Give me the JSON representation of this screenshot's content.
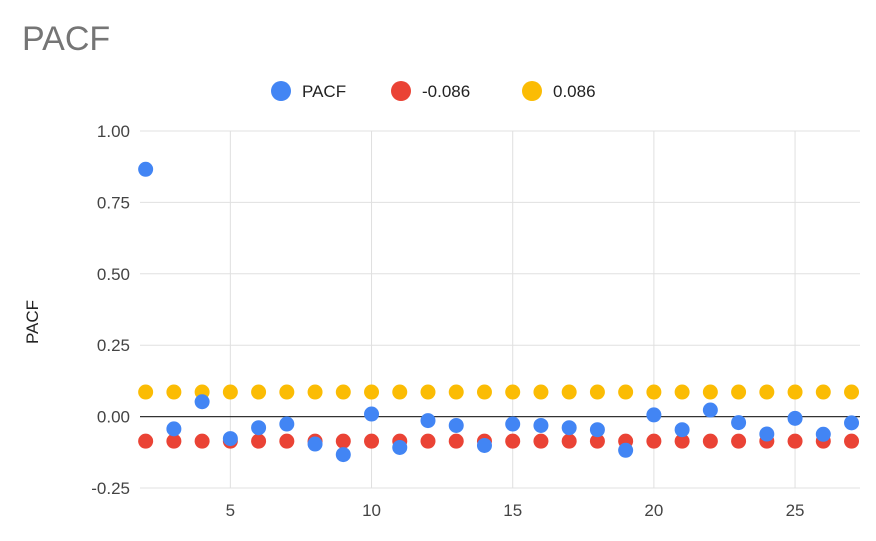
{
  "chart_data": {
    "type": "scatter",
    "title": "PACF",
    "xlabel": "",
    "ylabel": "PACF",
    "xlim": [
      1.8,
      27.3
    ],
    "ylim": [
      -0.25,
      1.0
    ],
    "xticks": [
      5,
      10,
      15,
      20,
      25
    ],
    "yticks": [
      -0.25,
      0.0,
      0.25,
      0.5,
      0.75,
      1.0
    ],
    "ytick_labels": [
      "-0.25",
      "0.00",
      "0.25",
      "0.50",
      "0.75",
      "1.00"
    ],
    "grid": true,
    "legend_position": "top",
    "x": [
      2,
      3,
      4,
      5,
      6,
      7,
      8,
      9,
      10,
      11,
      12,
      13,
      14,
      15,
      16,
      17,
      18,
      19,
      20,
      21,
      22,
      23,
      24,
      25,
      26,
      27
    ],
    "series": [
      {
        "name": "PACF",
        "color": "#4285f4",
        "values": [
          0.866,
          -0.043,
          0.052,
          -0.077,
          -0.039,
          -0.026,
          -0.096,
          -0.133,
          0.009,
          -0.108,
          -0.014,
          -0.031,
          -0.101,
          -0.026,
          -0.031,
          -0.039,
          -0.046,
          -0.118,
          0.006,
          -0.046,
          0.023,
          -0.021,
          -0.061,
          -0.006,
          -0.062,
          -0.022
        ]
      },
      {
        "name": "-0.086",
        "color": "#ea4335",
        "values": [
          -0.086,
          -0.086,
          -0.086,
          -0.086,
          -0.086,
          -0.086,
          -0.086,
          -0.086,
          -0.086,
          -0.086,
          -0.086,
          -0.086,
          -0.086,
          -0.086,
          -0.086,
          -0.086,
          -0.086,
          -0.086,
          -0.086,
          -0.086,
          -0.086,
          -0.086,
          -0.086,
          -0.086,
          -0.086,
          -0.086
        ]
      },
      {
        "name": "0.086",
        "color": "#fbbc04",
        "values": [
          0.086,
          0.086,
          0.086,
          0.086,
          0.086,
          0.086,
          0.086,
          0.086,
          0.086,
          0.086,
          0.086,
          0.086,
          0.086,
          0.086,
          0.086,
          0.086,
          0.086,
          0.086,
          0.086,
          0.086,
          0.086,
          0.086,
          0.086,
          0.086,
          0.086,
          0.086
        ]
      }
    ]
  }
}
